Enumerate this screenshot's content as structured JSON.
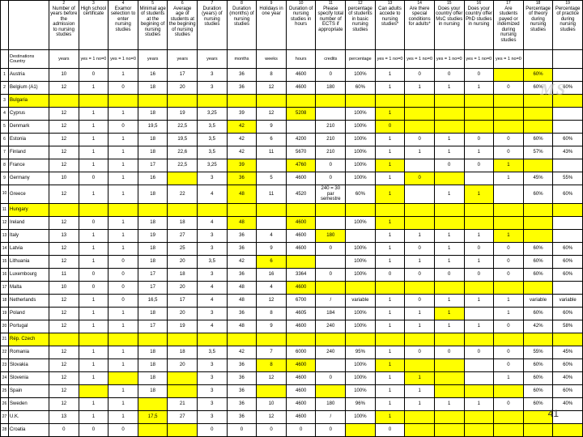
{
  "columns": [
    {
      "num": "1",
      "label": "",
      "units": ""
    },
    {
      "num": "",
      "label": "Destinations Country",
      "units": ""
    },
    {
      "num": "2",
      "label": "Number of years before the admission to nursing studies",
      "units": "years"
    },
    {
      "num": "3",
      "label": "High school certificate",
      "units": "yes = 1 no=0"
    },
    {
      "num": "4",
      "label": "Examor selection to enter nursing studies",
      "units": "yes = 1 no=0"
    },
    {
      "num": "5",
      "label": "Minimal age of students at the begining of nursing studies",
      "units": "years"
    },
    {
      "num": "6",
      "label": "Average age of students at the begining of nursing studies",
      "units": "years"
    },
    {
      "num": "7",
      "label": "Duration (years) of nursing studies",
      "units": "years"
    },
    {
      "num": "8",
      "label": "Duration (months) of nursing studies",
      "units": "months"
    },
    {
      "num": "9",
      "label": "Holidays in one year",
      "units": "weeks"
    },
    {
      "num": "10",
      "label": "Duration of nursing studies in hours",
      "units": "hours"
    },
    {
      "num": "11",
      "label": "Please specify total number of ECTS if appropriate",
      "units": "credits"
    },
    {
      "num": "12",
      "label": "percentage of students in basic nursing studies",
      "units": "percentage"
    },
    {
      "num": "13",
      "label": "Can adults accede to nursing studies*",
      "units": "yes = 1 no=0"
    },
    {
      "num": "14",
      "label": "Are there special conditions for adults*",
      "units": "yes = 1 no=0"
    },
    {
      "num": "15",
      "label": "Does your country offer MsC studies in nursing",
      "units": "yes = 1 no=0"
    },
    {
      "num": "16",
      "label": "Does your country offer PhD studies in nursing",
      "units": "yes = 1 no=0"
    },
    {
      "num": "17",
      "label": "Are students payed or indemized during nursing studies",
      "units": "yes = 1 no=0"
    },
    {
      "num": "18",
      "label": "Percentage of theory during nursing studies",
      "units": ""
    },
    {
      "num": "19",
      "label": "Percentage of practice during nursing studies",
      "units": ""
    }
  ],
  "rows": [
    {
      "n": "1",
      "c": "Austria",
      "hl": [],
      "v": [
        "10",
        "0",
        "1",
        "16",
        "17",
        "3",
        "36",
        "8",
        "4600",
        "0",
        "100%",
        "1",
        "0",
        "0",
        "0",
        "0",
        "",
        ""
      ],
      "partialhl": [
        17,
        18
      ],
      "partialhl_val": [
        "",
        "60%"
      ]
    },
    {
      "n": "2",
      "c": "Belgium (A1)",
      "hl": [],
      "v": [
        "12",
        "1",
        "0",
        "18",
        "20",
        "3",
        "36",
        "12",
        "4600",
        "180",
        "60%",
        "1",
        "1",
        "1",
        "1",
        "0",
        "60%",
        "60%"
      ]
    },
    {
      "n": "3",
      "c": "Bulgaria",
      "hl": "full",
      "v": [
        "",
        "",
        "",
        "",
        "",
        "",
        "",
        "",
        "",
        "",
        "",
        "",
        "",
        "",
        "",
        "",
        "",
        ""
      ]
    },
    {
      "n": "4",
      "c": "Cyprus",
      "hl": [
        10
      ],
      "v": [
        "12",
        "1",
        "1",
        "18",
        "19",
        "3,25",
        "39",
        "12",
        "5208",
        "",
        "100%",
        "1",
        "",
        "",
        "",
        "",
        "",
        ""
      ],
      "tailhl": [
        13,
        14,
        15,
        16,
        17,
        18
      ]
    },
    {
      "n": "5",
      "c": "Denmark",
      "hl": [
        8
      ],
      "v": [
        "12",
        "1",
        "0",
        "19,5",
        "22,5",
        "3,5",
        "42",
        "9",
        "",
        "210",
        "100%",
        "0",
        "",
        "",
        "",
        "",
        "",
        ""
      ],
      "tailhl": [
        13,
        14,
        15,
        16,
        17,
        18
      ]
    },
    {
      "n": "6",
      "c": "Estonia",
      "hl": [],
      "v": [
        "12",
        "1",
        "1",
        "18",
        "19,5",
        "3,5",
        "42",
        "6",
        "4200",
        "210",
        "100%",
        "1",
        "0",
        "1",
        "0",
        "0",
        "60%",
        "60%"
      ]
    },
    {
      "n": "7",
      "c": "Finland",
      "hl": [],
      "v": [
        "12",
        "1",
        "1",
        "18",
        "22,6",
        "3,5",
        "42",
        "11",
        "5670",
        "210",
        "100%",
        "1",
        "1",
        "1",
        "1",
        "0",
        "57%",
        "43%"
      ]
    },
    {
      "n": "8",
      "c": "France",
      "hl": [
        10
      ],
      "v": [
        "12",
        "1",
        "1",
        "17",
        "22,5",
        "3,25",
        "39",
        "",
        "4760",
        "0",
        "100%",
        "1",
        "",
        "0",
        "0",
        "1",
        "",
        ""
      ],
      "tailhl": [
        13,
        17,
        18
      ],
      "extrahl": [
        8
      ]
    },
    {
      "n": "9",
      "c": "Germany",
      "hl": [
        6
      ],
      "v": [
        "10",
        "0",
        "1",
        "16",
        "",
        "3",
        "36",
        "5",
        "4600",
        "0",
        "100%",
        "1",
        "0",
        "",
        "",
        "1",
        "45%",
        "55%"
      ],
      "tailhl": [
        14,
        15
      ],
      "extrahl": [
        8
      ]
    },
    {
      "n": "10",
      "c": "Greece",
      "hl": [],
      "v": [
        "12",
        "1",
        "1",
        "18",
        "22",
        "4",
        "48",
        "11",
        "4520",
        "240 = 30 par semestre",
        "60%",
        "1",
        "",
        "1",
        "1",
        "",
        "60%",
        "60%"
      ],
      "tailhl": [
        13,
        16
      ],
      "extrahl": [
        8
      ]
    },
    {
      "n": "11",
      "c": "Hungary",
      "hl": "full",
      "v": [
        "",
        "",
        "",
        "",
        "",
        "",
        "",
        "",
        "",
        "",
        "",
        "",
        "",
        "",
        "",
        "",
        "",
        ""
      ]
    },
    {
      "n": "12",
      "c": "Ireland",
      "hl": [
        8,
        10
      ],
      "v": [
        "12",
        "0",
        "1",
        "18",
        "18",
        "4",
        "48",
        "",
        "4600",
        "",
        "100%",
        "1",
        "",
        "",
        "",
        "",
        "",
        ""
      ],
      "tailhl": [
        13,
        14,
        15,
        16,
        17,
        18
      ]
    },
    {
      "n": "13",
      "c": "Italy",
      "hl": [],
      "v": [
        "13",
        "1",
        "1",
        "19",
        "27",
        "3",
        "36",
        "4",
        "4600",
        "180",
        "",
        "1",
        "1",
        "1",
        "1",
        "1",
        "",
        ""
      ],
      "tailhl": [
        11,
        17,
        18
      ]
    },
    {
      "n": "14",
      "c": "Latvia",
      "hl": [],
      "v": [
        "12",
        "1",
        "1",
        "18",
        "25",
        "3",
        "36",
        "9",
        "4600",
        "0",
        "100%",
        "1",
        "0",
        "1",
        "0",
        "0",
        "60%",
        "60%"
      ]
    },
    {
      "n": "15",
      "c": "Lithuania",
      "hl": [
        9
      ],
      "v": [
        "12",
        "1",
        "0",
        "18",
        "20",
        "3,5",
        "42",
        "6",
        "",
        "",
        "100%",
        "1",
        "1",
        "1",
        "1",
        "0",
        "60%",
        "60%"
      ],
      "extrahl": [
        10
      ]
    },
    {
      "n": "16",
      "c": "Luxembourg",
      "hl": [],
      "v": [
        "11",
        "0",
        "0",
        "17",
        "18",
        "3",
        "36",
        "16",
        "3364",
        "0",
        "100%",
        "0",
        "0",
        "0",
        "0",
        "0",
        "60%",
        "60%"
      ]
    },
    {
      "n": "17",
      "c": "Malta",
      "hl": [],
      "v": [
        "10",
        "0",
        "0",
        "17",
        "20",
        "4",
        "48",
        "4",
        "4600",
        "",
        "",
        "",
        "",
        "",
        "",
        "",
        "",
        ""
      ],
      "tailhl": [
        10,
        11,
        12,
        13,
        14,
        15,
        16,
        17,
        18
      ]
    },
    {
      "n": "18",
      "c": "Netherlands",
      "hl": [],
      "v": [
        "12",
        "1",
        "0",
        "16,5",
        "17",
        "4",
        "48",
        "12",
        "6700",
        "/",
        "variable",
        "1",
        "0",
        "1",
        "1",
        "1",
        "variable",
        "variable"
      ]
    },
    {
      "n": "19",
      "c": "Poland",
      "hl": [],
      "v": [
        "12",
        "1",
        "1",
        "18",
        "20",
        "3",
        "36",
        "8",
        "4605",
        "184",
        "100%",
        "1",
        "1",
        "1",
        "",
        "1",
        "60%",
        "60%"
      ],
      "tailhl": [
        15
      ]
    },
    {
      "n": "20",
      "c": "Portugal",
      "hl": [],
      "v": [
        "12",
        "1",
        "1",
        "17",
        "19",
        "4",
        "48",
        "9",
        "4600",
        "240",
        "100%",
        "1",
        "1",
        "1",
        "1",
        "0",
        "42%",
        "58%"
      ]
    },
    {
      "n": "21",
      "c": "Rép. Czech",
      "hl": "full",
      "v": [
        "",
        "",
        "",
        "",
        "",
        "",
        "",
        "",
        "",
        "",
        "",
        "",
        "",
        "",
        "",
        "",
        "",
        ""
      ]
    },
    {
      "n": "22",
      "c": "Romania",
      "hl": [],
      "v": [
        "12",
        "1",
        "1",
        "18",
        "18",
        "3,5",
        "42",
        "7",
        "6000",
        "240",
        "95%",
        "1",
        "0",
        "0",
        "0",
        "0",
        "55%",
        "45%"
      ]
    },
    {
      "n": "23",
      "c": "Slovakia",
      "hl": [
        9,
        10
      ],
      "v": [
        "12",
        "1",
        "1",
        "18",
        "20",
        "3",
        "36",
        "8",
        "4600",
        "",
        "100%",
        "1",
        "",
        "",
        "",
        "0",
        "60%",
        "60%"
      ],
      "tailhl": [
        13,
        14,
        15
      ]
    },
    {
      "n": "24",
      "c": "Slovenia",
      "hl": [],
      "v": [
        "12",
        "1",
        "",
        "18",
        "",
        "3",
        "36",
        "12",
        "4600",
        "0",
        "100%",
        "1",
        "1",
        "",
        "",
        "1",
        "60%",
        "40%"
      ],
      "tailhl": [
        4,
        6,
        14,
        15
      ]
    },
    {
      "n": "25",
      "c": "Spain",
      "hl": [],
      "v": [
        "12",
        "",
        "1",
        "18",
        "",
        "3",
        "36",
        "",
        "4600",
        "",
        "100%",
        "1",
        "1",
        "",
        "",
        "",
        "60%",
        "60%"
      ],
      "tailhl": [
        3,
        6,
        9,
        11,
        15,
        16,
        17
      ]
    },
    {
      "n": "26",
      "c": "Sweden",
      "hl": [],
      "v": [
        "12",
        "1",
        "1",
        "",
        "21",
        "3",
        "36",
        "10",
        "4600",
        "180",
        "96%",
        "1",
        "1",
        "1",
        "1",
        "0",
        "60%",
        "40%"
      ],
      "tailhl": [
        5
      ]
    },
    {
      "n": "27",
      "c": "U.K.",
      "hl": [
        5
      ],
      "v": [
        "13",
        "1",
        "1",
        "17,5",
        "27",
        "3",
        "36",
        "12",
        "4600",
        "/",
        "100%",
        "1",
        "",
        "",
        "",
        "",
        "",
        ""
      ],
      "tailhl": [
        13,
        14,
        15,
        16,
        17,
        18
      ]
    },
    {
      "n": "28",
      "c": "Croatia",
      "hl": [],
      "v": [
        "0",
        "0",
        "0",
        "",
        "",
        "0",
        "0",
        "0",
        "0",
        "0",
        "",
        "0",
        "",
        "",
        "",
        "",
        "",
        ""
      ],
      "tailhl": [
        5,
        6,
        12,
        14,
        15,
        16,
        17,
        18,
        19
      ]
    },
    {
      "n": "29",
      "c": "Iceland",
      "hl": [],
      "v": [
        "",
        "",
        "",
        "",
        "",
        "",
        "",
        "",
        "",
        "",
        "",
        "",
        "",
        "",
        "",
        "",
        "",
        ""
      ],
      "tailhl": [
        2,
        3,
        4,
        5,
        6,
        7,
        8,
        9,
        10,
        11,
        12,
        13,
        14,
        15,
        16,
        17,
        18,
        19
      ]
    }
  ],
  "watermark": "MS",
  "pagenum": "41"
}
